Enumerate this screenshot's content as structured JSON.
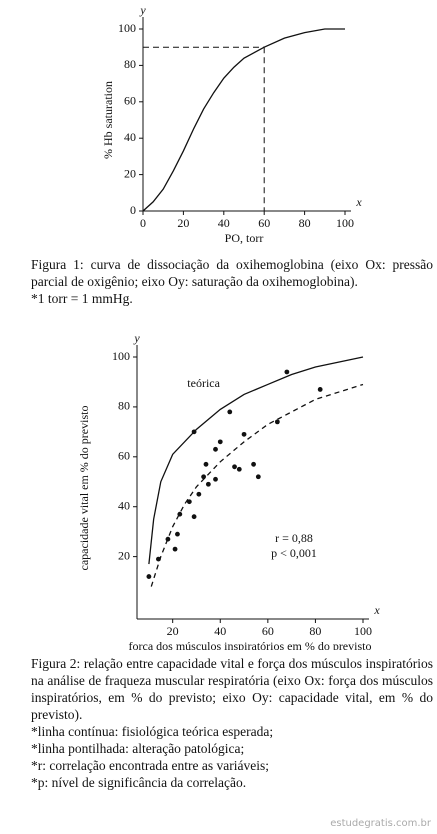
{
  "chart_data": [
    {
      "type": "line",
      "y_letter": "y",
      "x_letter": "x",
      "ylabel": "% Hb saturation",
      "xlabel": "PO, torr",
      "xlim": [
        0,
        100
      ],
      "xticks": [
        0,
        20,
        40,
        60,
        80,
        100
      ],
      "ylim": [
        0,
        100
      ],
      "yticks": [
        0,
        20,
        40,
        60,
        80,
        100
      ],
      "x": [
        0,
        5,
        10,
        15,
        20,
        25,
        30,
        35,
        40,
        45,
        50,
        55,
        60,
        70,
        80,
        90,
        100
      ],
      "values": [
        0,
        5,
        12,
        22,
        33,
        45,
        56,
        65,
        73,
        79,
        84,
        87,
        90,
        95,
        98,
        100,
        100
      ],
      "color": "#111",
      "reference": {
        "x": 60,
        "y": 90
      }
    },
    {
      "type": "scatter",
      "y_letter": "y",
      "x_letter": "x",
      "ylabel": "capacidade vital em % do previsto",
      "xlabel": "força dos músculos inspiratórios em % do previsto",
      "xlim": [
        5,
        100
      ],
      "xticks": [
        20,
        40,
        60,
        80,
        100
      ],
      "ylim": [
        -5,
        100
      ],
      "yticks": [
        20,
        40,
        60,
        80,
        100
      ],
      "series": [
        {
          "name": "teórica",
          "style": "solid",
          "color": "#111",
          "x": [
            10,
            12,
            15,
            20,
            30,
            40,
            50,
            60,
            70,
            80,
            90,
            100
          ],
          "values": [
            17,
            35,
            50,
            61,
            71,
            79,
            85,
            89,
            93,
            96,
            98,
            100
          ]
        },
        {
          "style": "dashed",
          "color": "#111",
          "x": [
            11,
            15,
            20,
            25,
            30,
            40,
            50,
            60,
            70,
            80,
            90,
            100
          ],
          "values": [
            8,
            20,
            32,
            41,
            48,
            58,
            66,
            73,
            78,
            83,
            86,
            89
          ]
        },
        {
          "style": "points",
          "color": "#111",
          "x": [
            10,
            14,
            18,
            21,
            22,
            23,
            27,
            29,
            29,
            31,
            33,
            34,
            35,
            38,
            38,
            40,
            44,
            46,
            48,
            50,
            54,
            56,
            64,
            68,
            82
          ],
          "values": [
            12,
            19,
            27,
            23,
            29,
            37,
            42,
            70,
            36,
            45,
            52,
            57,
            49,
            51,
            63,
            66,
            78,
            56,
            55,
            69,
            57,
            52,
            74,
            94,
            87
          ]
        }
      ],
      "annotations": [
        "r = 0,88",
        "p < 0,001"
      ]
    }
  ],
  "captions": [
    {
      "text": "Figura 1: curva de dissociação da oxihemoglobina (eixo Ox: pressão parcial de oxigênio; eixo Oy: saturação da oxihemoglobina).",
      "notes": [
        "*1 torr = 1 mmHg."
      ]
    },
    {
      "text": "Figura 2: relação entre capacidade vital e força dos músculos inspiratórios na análise de fraqueza muscular respiratória (eixo Ox: força dos músculos inspiratórios, em % do previsto; eixo Oy: capacidade vital, em % do previsto).",
      "notes": [
        "*linha contínua: fisiológica teórica esperada;",
        "*linha pontilhada: alteração patológica;",
        "*r: correlação encontrada entre as variáveis;",
        "*p: nível de significância da correlação."
      ]
    }
  ],
  "footer": "estudegratis.com.br"
}
